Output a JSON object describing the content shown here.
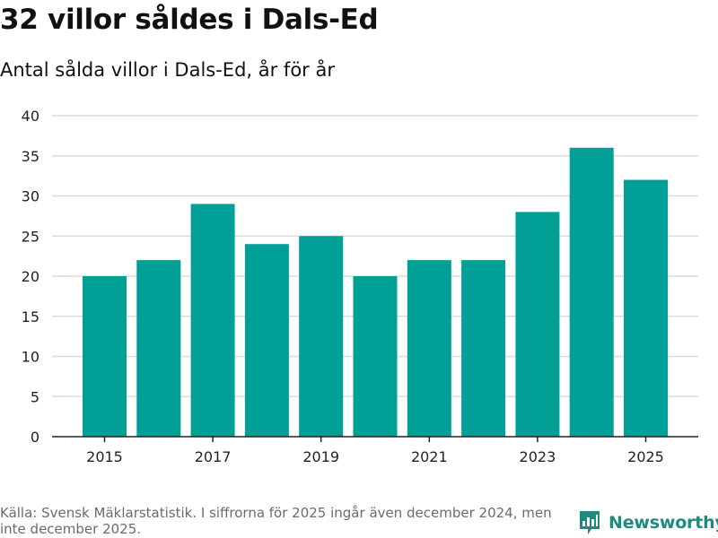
{
  "header": {
    "title": "32 villor såldes i Dals-Ed",
    "subtitle": "Antal sålda villor i Dals-Ed, år för år"
  },
  "chart_data": {
    "type": "bar",
    "title": "32 villor såldes i Dals-Ed",
    "subtitle": "Antal sålda villor i Dals-Ed, år för år",
    "categories": [
      "2015",
      "2016",
      "2017",
      "2018",
      "2019",
      "2020",
      "2021",
      "2022",
      "2023",
      "2024",
      "2025"
    ],
    "values": [
      20,
      22,
      29,
      24,
      25,
      20,
      22,
      22,
      28,
      36,
      32
    ],
    "x_tick_labels": [
      "2015",
      "2017",
      "2019",
      "2021",
      "2023",
      "2025"
    ],
    "y_ticks": [
      0,
      5,
      10,
      15,
      20,
      25,
      30,
      35,
      40
    ],
    "ylim": [
      0,
      40
    ],
    "xlabel": "",
    "ylabel": "",
    "grid": true,
    "bar_color": "#00a096",
    "grid_color": "#dcdcdc",
    "axis_color": "#222222"
  },
  "footer": {
    "source": "Källa: Svensk Mäklarstatistik. I siffrorna för 2025 ingår även december 2024, men inte december 2025.",
    "brand": "Newsworthy",
    "brand_color": "#1f8a7e",
    "brand_icon": "bar-chart-icon"
  }
}
